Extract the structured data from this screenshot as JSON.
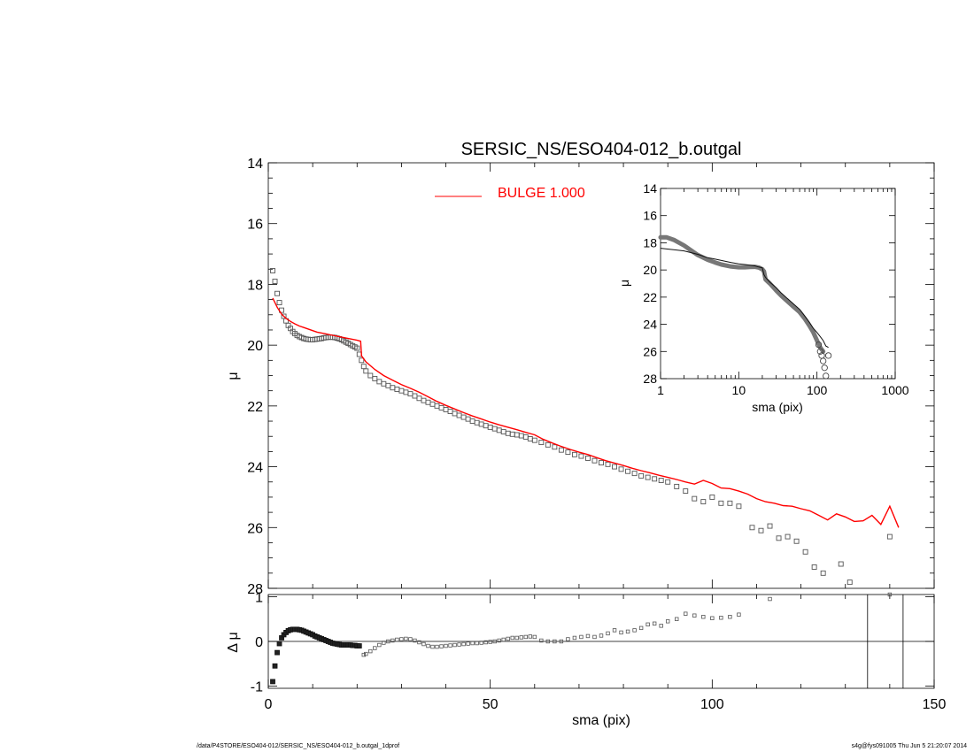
{
  "title": "SERSIC_NS/ESO404-012_b.outgal",
  "footer_left": "/data/P4STORE/ESO404-012/SERSIC_NS/ESO404-012_b.outgal_1dprof",
  "footer_right": "s4g@fys091005  Thu Jun  5 21:20:07 2014",
  "colors": {
    "model": "#ff0000",
    "data": "#555555",
    "axis": "#000000"
  },
  "chart_data": [
    {
      "type": "scatter",
      "panel": "main",
      "title": "SERSIC_NS/ESO404-012_b.outgal",
      "xlabel": "",
      "ylabel": "μ",
      "xlim": [
        0,
        150
      ],
      "ylim": [
        28,
        14
      ],
      "yticks": [
        "14",
        "16",
        "18",
        "20",
        "22",
        "24",
        "26",
        "28"
      ],
      "legend": {
        "label": "BULGE  1.000",
        "placement": "top-center"
      },
      "series": [
        {
          "name": "data",
          "style": "open-squares",
          "x": [
            1.0,
            1.5,
            2.0,
            2.5,
            3.0,
            3.5,
            4.0,
            4.5,
            5.0,
            5.5,
            6.0,
            6.5,
            7.0,
            7.5,
            8.0,
            8.5,
            9.0,
            9.5,
            10.0,
            10.5,
            11.0,
            11.5,
            12.0,
            12.5,
            13.0,
            13.5,
            14.0,
            14.5,
            15.0,
            15.5,
            16.0,
            16.5,
            17.0,
            17.5,
            18.0,
            18.5,
            19.0,
            19.5,
            20.0,
            20.5,
            21.0,
            21.5,
            22.0,
            23.0,
            24.0,
            25.0,
            26.0,
            27.0,
            28.0,
            29.0,
            30.0,
            31.0,
            32.0,
            33.0,
            34.0,
            35.0,
            36.0,
            37.0,
            38.0,
            39.0,
            40.0,
            41.0,
            42.0,
            43.0,
            44.0,
            45.0,
            46.0,
            47.0,
            48.0,
            49.0,
            50.0,
            51.0,
            52.0,
            53.0,
            54.0,
            55.0,
            56.0,
            57.0,
            58.0,
            59.0,
            60.0,
            61.5,
            63.0,
            64.5,
            66.0,
            67.5,
            69.0,
            70.5,
            72.0,
            73.5,
            75.0,
            76.5,
            78.0,
            79.5,
            81.0,
            82.5,
            84.0,
            85.5,
            87.0,
            88.5,
            90.0,
            92.0,
            94.0,
            96.0,
            98.0,
            100.0,
            102.0,
            104.0,
            106.0,
            109.0,
            111.0,
            113.0,
            115.0,
            117.0,
            119.0,
            121.0,
            123.0,
            125.0,
            129.0,
            131.0,
            140.0
          ],
          "y": [
            17.55,
            17.9,
            18.3,
            18.6,
            18.85,
            19.05,
            19.2,
            19.35,
            19.45,
            19.55,
            19.62,
            19.68,
            19.72,
            19.75,
            19.78,
            19.8,
            19.81,
            19.82,
            19.82,
            19.81,
            19.8,
            19.79,
            19.78,
            19.76,
            19.75,
            19.74,
            19.74,
            19.74,
            19.75,
            19.77,
            19.79,
            19.82,
            19.86,
            19.9,
            19.94,
            19.98,
            20.02,
            20.06,
            20.1,
            20.3,
            20.5,
            20.7,
            20.85,
            21.0,
            21.1,
            21.2,
            21.27,
            21.33,
            21.4,
            21.45,
            21.5,
            21.55,
            21.6,
            21.67,
            21.75,
            21.82,
            21.88,
            21.94,
            22.0,
            22.06,
            22.12,
            22.18,
            22.25,
            22.31,
            22.37,
            22.43,
            22.5,
            22.55,
            22.6,
            22.65,
            22.7,
            22.75,
            22.8,
            22.85,
            22.9,
            22.93,
            22.95,
            22.98,
            23.02,
            23.08,
            23.13,
            23.2,
            23.28,
            23.35,
            23.45,
            23.52,
            23.6,
            23.65,
            23.72,
            23.8,
            23.87,
            23.92,
            24.0,
            24.08,
            24.15,
            24.22,
            24.3,
            24.35,
            24.4,
            24.45,
            24.5,
            24.65,
            24.8,
            25.05,
            25.15,
            25.0,
            25.2,
            25.2,
            25.3,
            26.0,
            26.1,
            25.95,
            26.35,
            26.3,
            26.45,
            26.8,
            27.3,
            27.5,
            27.2,
            27.8,
            26.3
          ]
        },
        {
          "name": "BULGE  1.000",
          "style": "line",
          "x": [
            1.0,
            2.0,
            3.0,
            4.0,
            5.0,
            6.0,
            7.0,
            8.0,
            9.0,
            10.0,
            11.0,
            12.0,
            13.0,
            14.0,
            15.0,
            16.0,
            17.0,
            18.0,
            19.0,
            20.0,
            20.8,
            21.0,
            22.0,
            24.0,
            26.0,
            28.0,
            30.0,
            32.0,
            34.0,
            36.0,
            38.0,
            40.0,
            42.0,
            44.0,
            46.0,
            48.0,
            50.0,
            52.0,
            54.0,
            56.0,
            58.0,
            60.0,
            62.0,
            64.0,
            66.0,
            68.0,
            70.0,
            72.0,
            74.0,
            76.0,
            78.0,
            80.0,
            82.0,
            84.0,
            86.0,
            88.0,
            90.0,
            92.0,
            94.0,
            96.0,
            98.0,
            100.0,
            102.0,
            104.0,
            106.0,
            108.0,
            110.0,
            112.0,
            114.0,
            116.0,
            118.0,
            120.0,
            122.0,
            124.0,
            126.0,
            128.0,
            130.0,
            132.0,
            134.0,
            136.0,
            138.0,
            140.0,
            142.0
          ],
          "y": [
            18.45,
            18.75,
            18.98,
            19.12,
            19.22,
            19.3,
            19.37,
            19.42,
            19.47,
            19.52,
            19.57,
            19.6,
            19.63,
            19.66,
            19.69,
            19.72,
            19.75,
            19.78,
            19.81,
            19.84,
            19.87,
            20.35,
            20.55,
            20.8,
            21.0,
            21.15,
            21.3,
            21.42,
            21.55,
            21.7,
            21.85,
            21.98,
            22.1,
            22.22,
            22.33,
            22.43,
            22.53,
            22.62,
            22.7,
            22.78,
            22.87,
            22.95,
            23.1,
            23.22,
            23.33,
            23.43,
            23.52,
            23.6,
            23.7,
            23.8,
            23.88,
            23.96,
            24.05,
            24.13,
            24.2,
            24.28,
            24.35,
            24.42,
            24.5,
            24.57,
            24.45,
            24.55,
            24.7,
            24.72,
            24.8,
            24.9,
            25.05,
            25.15,
            25.2,
            25.28,
            25.3,
            25.38,
            25.45,
            25.6,
            25.75,
            25.55,
            25.65,
            25.8,
            25.78,
            25.6,
            25.9,
            25.3,
            26.0
          ]
        }
      ]
    },
    {
      "type": "scatter",
      "panel": "residual",
      "xlabel": "sma (pix)",
      "ylabel": "Δ μ",
      "xlim": [
        0,
        150
      ],
      "ylim": [
        -1.05,
        1.05
      ],
      "xticks": [
        "0",
        "50",
        "100",
        "150"
      ],
      "yticks": [
        "1",
        "0",
        "-1"
      ],
      "vertical_lines_x": [
        135,
        143
      ],
      "zero_line": true,
      "series": [
        {
          "name": "residual",
          "style": "open-squares",
          "x": [
            1.0,
            1.5,
            2.0,
            2.5,
            3.0,
            3.5,
            4.0,
            4.5,
            5.0,
            5.5,
            6.0,
            6.5,
            7.0,
            7.5,
            8.0,
            8.5,
            9.0,
            9.5,
            10.0,
            10.5,
            11.0,
            11.5,
            12.0,
            12.5,
            13.0,
            13.5,
            14.0,
            14.5,
            15.0,
            15.5,
            16.0,
            16.5,
            17.0,
            17.5,
            18.0,
            18.5,
            19.0,
            19.5,
            20.0,
            20.5,
            21.5,
            22.0,
            23.0,
            24.0,
            25.0,
            26.0,
            27.0,
            28.0,
            29.0,
            30.0,
            31.0,
            32.0,
            33.0,
            34.0,
            35.0,
            36.0,
            37.0,
            38.0,
            39.0,
            40.0,
            41.0,
            42.0,
            43.0,
            44.0,
            45.0,
            46.0,
            47.0,
            48.0,
            49.0,
            50.0,
            51.0,
            52.0,
            53.0,
            54.0,
            55.0,
            56.0,
            57.0,
            58.0,
            59.0,
            60.0,
            61.5,
            63.0,
            64.5,
            66.0,
            67.5,
            69.0,
            70.5,
            72.0,
            73.5,
            75.0,
            76.5,
            78.0,
            79.5,
            81.0,
            82.5,
            84.0,
            85.5,
            87.0,
            88.5,
            90.0,
            92.0,
            94.0,
            96.0,
            98.0,
            100.0,
            102.0,
            104.0,
            106.0,
            113.0,
            140.0
          ],
          "y": [
            -0.9,
            -0.55,
            -0.25,
            -0.05,
            0.08,
            0.15,
            0.2,
            0.24,
            0.26,
            0.27,
            0.27,
            0.27,
            0.26,
            0.25,
            0.23,
            0.21,
            0.19,
            0.17,
            0.15,
            0.12,
            0.1,
            0.08,
            0.06,
            0.04,
            0.02,
            0.0,
            -0.02,
            -0.04,
            -0.05,
            -0.06,
            -0.07,
            -0.08,
            -0.08,
            -0.08,
            -0.08,
            -0.08,
            -0.09,
            -0.09,
            -0.1,
            -0.1,
            -0.3,
            -0.28,
            -0.22,
            -0.15,
            -0.08,
            -0.03,
            0.0,
            0.02,
            0.04,
            0.05,
            0.06,
            0.05,
            0.02,
            -0.02,
            -0.06,
            -0.1,
            -0.12,
            -0.12,
            -0.11,
            -0.1,
            -0.09,
            -0.08,
            -0.07,
            -0.06,
            -0.05,
            -0.04,
            -0.04,
            -0.03,
            -0.02,
            -0.01,
            0.0,
            0.02,
            0.04,
            0.06,
            0.08,
            0.08,
            0.09,
            0.1,
            0.11,
            0.1,
            0.02,
            0.0,
            0.0,
            0.0,
            0.05,
            0.08,
            0.1,
            0.12,
            0.1,
            0.13,
            0.18,
            0.25,
            0.2,
            0.22,
            0.25,
            0.3,
            0.38,
            0.4,
            0.35,
            0.45,
            0.5,
            0.62,
            0.58,
            0.55,
            0.52,
            0.53,
            0.55,
            0.6,
            0.95,
            1.05
          ]
        }
      ]
    },
    {
      "type": "line",
      "panel": "inset",
      "xlabel": "sma (pix)",
      "ylabel": "μ",
      "xscale": "log",
      "xlim": [
        1,
        1000
      ],
      "ylim": [
        28,
        14
      ],
      "xticks": [
        "1",
        "10",
        "100",
        "1000"
      ],
      "yticks": [
        "14",
        "16",
        "18",
        "20",
        "22",
        "24",
        "26",
        "28"
      ],
      "series": [
        {
          "name": "data",
          "style": "thick-line",
          "x": [
            1.0,
            1.2,
            1.5,
            2.0,
            2.5,
            3.0,
            4.0,
            5.0,
            6.0,
            8.0,
            10.0,
            12.0,
            14.0,
            16.0,
            18.0,
            20.0,
            21.0,
            22.0,
            25.0,
            30.0,
            35.0,
            40.0,
            50.0,
            60.0,
            70.0,
            80.0,
            90.0,
            100.0,
            110.0,
            120.0
          ],
          "y": [
            17.6,
            17.6,
            17.8,
            18.2,
            18.6,
            18.9,
            19.25,
            19.45,
            19.6,
            19.75,
            19.8,
            19.8,
            19.78,
            19.77,
            19.82,
            19.95,
            20.1,
            20.7,
            21.0,
            21.5,
            21.9,
            22.2,
            22.7,
            23.1,
            23.6,
            24.1,
            24.6,
            25.2,
            25.7,
            26.0
          ]
        },
        {
          "name": "model",
          "style": "line",
          "x": [
            1.0,
            2.0,
            3.0,
            4.0,
            5.0,
            6.0,
            8.0,
            10.0,
            12.0,
            14.0,
            16.0,
            18.0,
            20.0,
            21.0,
            22.0,
            25.0,
            30.0,
            35.0,
            40.0,
            50.0,
            60.0,
            70.0,
            80.0,
            90.0,
            100.0,
            110.0,
            120.0,
            130.0,
            140.0
          ],
          "y": [
            18.4,
            18.6,
            18.85,
            19.1,
            19.2,
            19.3,
            19.45,
            19.55,
            19.6,
            19.65,
            19.7,
            19.78,
            19.84,
            20.35,
            20.55,
            20.9,
            21.3,
            21.7,
            22.0,
            22.5,
            22.9,
            23.4,
            23.85,
            24.3,
            24.6,
            24.9,
            25.2,
            25.6,
            25.7
          ]
        },
        {
          "name": "outer points",
          "style": "open-circles",
          "x": [
            105.0,
            110.0,
            115.0,
            120.0,
            125.0,
            130.0,
            140.0
          ],
          "y": [
            25.5,
            26.0,
            26.3,
            26.7,
            27.2,
            27.8,
            26.3
          ]
        }
      ]
    }
  ]
}
